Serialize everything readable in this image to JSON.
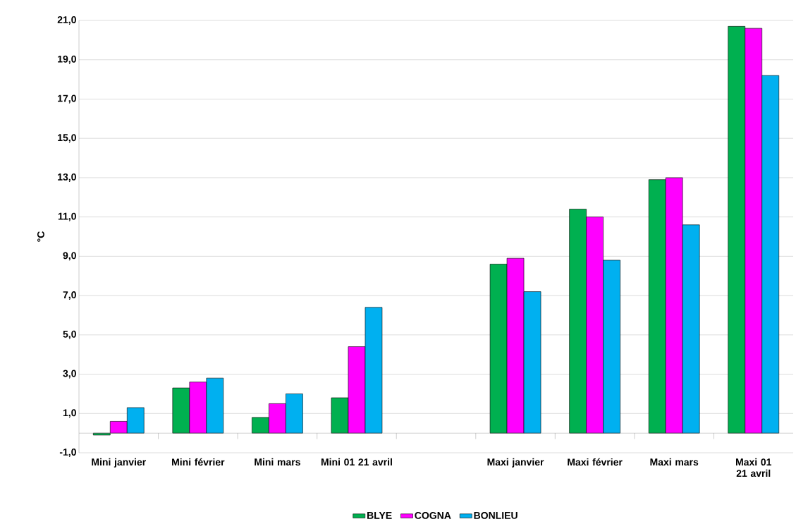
{
  "chart_data": {
    "type": "bar",
    "ylabel": "°C",
    "categories": [
      "Mini janvier",
      "Mini février",
      "Mini mars",
      "Mini 01 21 avril",
      null,
      "Maxi janvier",
      "Maxi février",
      "Maxi mars",
      "Maxi 01 21 avril"
    ],
    "series": [
      {
        "name": "BLYE",
        "color": "#00b050",
        "values": [
          -0.1,
          2.3,
          0.8,
          1.8,
          null,
          8.6,
          11.4,
          12.9,
          20.7
        ]
      },
      {
        "name": "COGNA",
        "color": "#ff00ff",
        "values": [
          0.6,
          2.6,
          1.5,
          4.4,
          null,
          8.9,
          11.0,
          13.0,
          20.6
        ]
      },
      {
        "name": "BONLIEU",
        "color": "#00b0f0",
        "values": [
          1.3,
          2.8,
          2.0,
          6.4,
          null,
          7.2,
          8.8,
          10.6,
          18.2
        ]
      }
    ],
    "ylim": [
      -1,
      21
    ],
    "yticks": [
      {
        "value": -1,
        "label": "-1,0"
      },
      {
        "value": 1,
        "label": "1,0"
      },
      {
        "value": 3,
        "label": "3,0"
      },
      {
        "value": 5,
        "label": "5,0"
      },
      {
        "value": 7,
        "label": "7,0"
      },
      {
        "value": 9,
        "label": "9,0"
      },
      {
        "value": 11,
        "label": "11,0"
      },
      {
        "value": 13,
        "label": "13,0"
      },
      {
        "value": 15,
        "label": "15,0"
      },
      {
        "value": 17,
        "label": "17,0"
      },
      {
        "value": 19,
        "label": "19,0"
      },
      {
        "value": 21,
        "label": "21,0"
      }
    ],
    "grid": "y",
    "legend": "bottom"
  }
}
